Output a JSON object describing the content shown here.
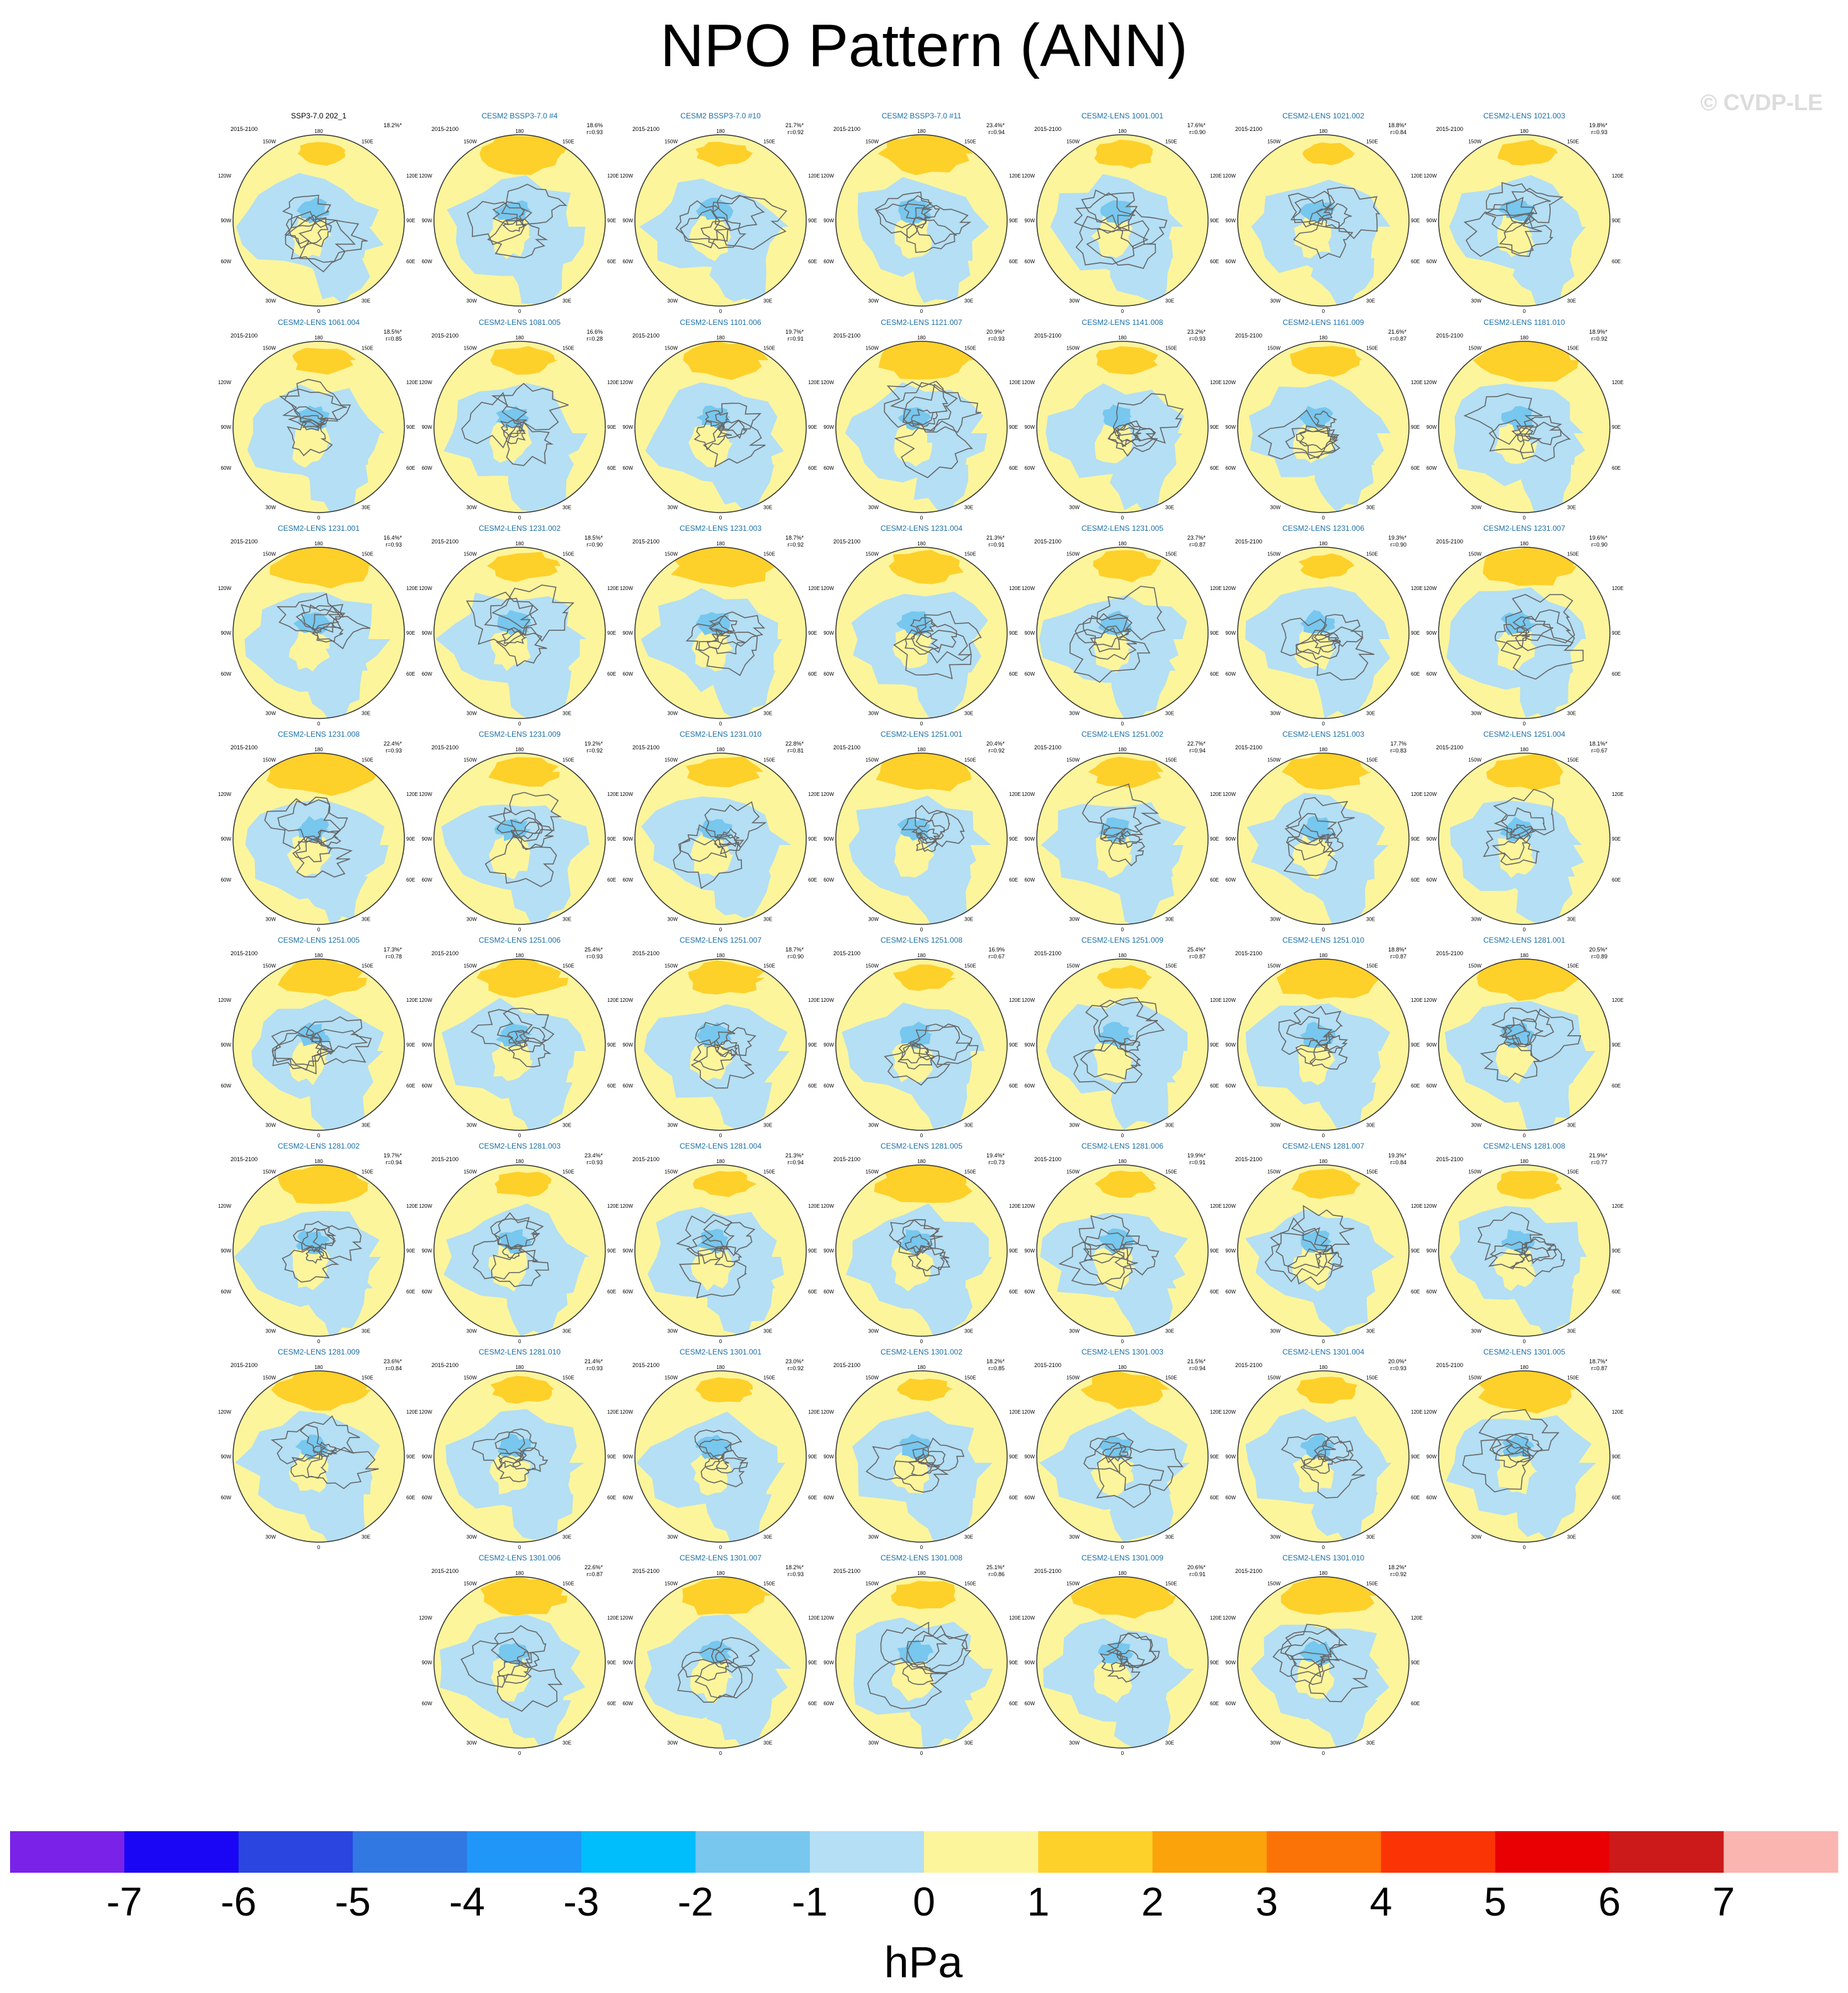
{
  "title": "NPO Pattern (ANN)",
  "watermark": "© CVDP-LE",
  "chart_data": {
    "type": "map-panels",
    "period": "2015-2100",
    "panels": [
      {
        "label": "SSP3-7.0 202_1",
        "pct": "18.2%*",
        "r": ""
      },
      {
        "label": "CESM2 BSSP3-7.0 #4",
        "pct": "18.6%",
        "r": "r=0.93"
      },
      {
        "label": "CESM2 BSSP3-7.0 #10",
        "pct": "21.7%*",
        "r": "r=0.92"
      },
      {
        "label": "CESM2 BSSP3-7.0 #11",
        "pct": "23.4%*",
        "r": "r=0.94"
      },
      {
        "label": "CESM2-LENS 1001.001",
        "pct": "17.6%*",
        "r": "r=0.90"
      },
      {
        "label": "CESM2-LENS 1021.002",
        "pct": "18.8%*",
        "r": "r=0.84"
      },
      {
        "label": "CESM2-LENS 1021.003",
        "pct": "19.8%*",
        "r": "r=0.93"
      },
      {
        "label": "CESM2-LENS 1061.004",
        "pct": "18.5%*",
        "r": "r=0.85"
      },
      {
        "label": "CESM2-LENS 1081.005",
        "pct": "16.6%",
        "r": "r=0.28"
      },
      {
        "label": "CESM2-LENS 1101.006",
        "pct": "19.7%*",
        "r": "r=0.91"
      },
      {
        "label": "CESM2-LENS 1121.007",
        "pct": "20.9%*",
        "r": "r=0.93"
      },
      {
        "label": "CESM2-LENS 1141.008",
        "pct": "23.2%*",
        "r": "r=0.93"
      },
      {
        "label": "CESM2-LENS 1161.009",
        "pct": "21.6%*",
        "r": "r=0.87"
      },
      {
        "label": "CESM2-LENS 1181.010",
        "pct": "18.9%*",
        "r": "r=0.92"
      },
      {
        "label": "CESM2-LENS 1231.001",
        "pct": "16.4%*",
        "r": "r=0.93"
      },
      {
        "label": "CESM2-LENS 1231.002",
        "pct": "18.5%*",
        "r": "r=0.90"
      },
      {
        "label": "CESM2-LENS 1231.003",
        "pct": "18.7%*",
        "r": "r=0.92"
      },
      {
        "label": "CESM2-LENS 1231.004",
        "pct": "21.3%*",
        "r": "r=0.91"
      },
      {
        "label": "CESM2-LENS 1231.005",
        "pct": "23.7%*",
        "r": "r=0.87"
      },
      {
        "label": "CESM2-LENS 1231.006",
        "pct": "19.3%*",
        "r": "r=0.90"
      },
      {
        "label": "CESM2-LENS 1231.007",
        "pct": "19.6%*",
        "r": "r=0.90"
      },
      {
        "label": "CESM2-LENS 1231.008",
        "pct": "22.4%*",
        "r": "r=0.93"
      },
      {
        "label": "CESM2-LENS 1231.009",
        "pct": "19.2%*",
        "r": "r=0.92"
      },
      {
        "label": "CESM2-LENS 1231.010",
        "pct": "22.8%*",
        "r": "r=0.81"
      },
      {
        "label": "CESM2-LENS 1251.001",
        "pct": "20.4%*",
        "r": "r=0.92"
      },
      {
        "label": "CESM2-LENS 1251.002",
        "pct": "22.7%*",
        "r": "r=0.94"
      },
      {
        "label": "CESM2-LENS 1251.003",
        "pct": "17.7%",
        "r": "r=0.83"
      },
      {
        "label": "CESM2-LENS 1251.004",
        "pct": "18.1%*",
        "r": "r=0.67"
      },
      {
        "label": "CESM2-LENS 1251.005",
        "pct": "17.3%*",
        "r": "r=0.78"
      },
      {
        "label": "CESM2-LENS 1251.006",
        "pct": "25.4%*",
        "r": "r=0.93"
      },
      {
        "label": "CESM2-LENS 1251.007",
        "pct": "18.7%*",
        "r": "r=0.90"
      },
      {
        "label": "CESM2-LENS 1251.008",
        "pct": "16.9%",
        "r": "r=0.67"
      },
      {
        "label": "CESM2-LENS 1251.009",
        "pct": "25.4%*",
        "r": "r=0.87"
      },
      {
        "label": "CESM2-LENS 1251.010",
        "pct": "18.8%*",
        "r": "r=0.87"
      },
      {
        "label": "CESM2-LENS 1281.001",
        "pct": "20.5%*",
        "r": "r=0.89"
      },
      {
        "label": "CESM2-LENS 1281.002",
        "pct": "19.7%*",
        "r": "r=0.94"
      },
      {
        "label": "CESM2-LENS 1281.003",
        "pct": "23.4%*",
        "r": "r=0.93"
      },
      {
        "label": "CESM2-LENS 1281.004",
        "pct": "21.3%*",
        "r": "r=0.94"
      },
      {
        "label": "CESM2-LENS 1281.005",
        "pct": "19.4%*",
        "r": "r=0.73"
      },
      {
        "label": "CESM2-LENS 1281.006",
        "pct": "19.9%*",
        "r": "r=0.91"
      },
      {
        "label": "CESM2-LENS 1281.007",
        "pct": "19.3%*",
        "r": "r=0.84"
      },
      {
        "label": "CESM2-LENS 1281.008",
        "pct": "21.9%*",
        "r": "r=0.77"
      },
      {
        "label": "CESM2-LENS 1281.009",
        "pct": "23.6%*",
        "r": "r=0.84"
      },
      {
        "label": "CESM2-LENS 1281.010",
        "pct": "21.4%*",
        "r": "r=0.93"
      },
      {
        "label": "CESM2-LENS 1301.001",
        "pct": "23.0%*",
        "r": "r=0.92"
      },
      {
        "label": "CESM2-LENS 1301.002",
        "pct": "18.2%*",
        "r": "r=0.85"
      },
      {
        "label": "CESM2-LENS 1301.003",
        "pct": "21.5%*",
        "r": "r=0.94"
      },
      {
        "label": "CESM2-LENS 1301.004",
        "pct": "20.0%*",
        "r": "r=0.93"
      },
      {
        "label": "CESM2-LENS 1301.005",
        "pct": "18.7%*",
        "r": "r=0.87"
      },
      {
        "label": "CESM2-LENS 1301.006",
        "pct": "22.6%*",
        "r": "r=0.87"
      },
      {
        "label": "CESM2-LENS 1301.007",
        "pct": "18.2%*",
        "r": "r=0.93"
      },
      {
        "label": "CESM2-LENS 1301.008",
        "pct": "25.1%*",
        "r": "r=0.86"
      },
      {
        "label": "CESM2-LENS 1301.009",
        "pct": "20.6%*",
        "r": "r=0.91"
      },
      {
        "label": "CESM2-LENS 1301.010",
        "pct": "18.2%*",
        "r": "r=0.92"
      }
    ],
    "map_labels": {
      "top": "180",
      "bottom": "0",
      "left_upper": "150W",
      "right_upper": "150E",
      "left_mid_upper": "120W",
      "right_mid_upper": "120E",
      "left_mid": "90W",
      "right_mid": "90E",
      "left_mid_lower": "60W",
      "right_mid_lower": "60E",
      "left_lower": "30W",
      "right_lower": "30E"
    },
    "colorbar": {
      "unit": "hPa",
      "ticks": [
        "-7",
        "-6",
        "-5",
        "-4",
        "-3",
        "-2",
        "-1",
        "0",
        "1",
        "2",
        "3",
        "4",
        "5",
        "6",
        "7"
      ],
      "colors": [
        "#7b22e8",
        "#1a06f5",
        "#2a45e0",
        "#3278e2",
        "#2196f9",
        "#00bdfb",
        "#77c7ef",
        "#b4dff4",
        "#fcf59c",
        "#fed02a",
        "#fba30a",
        "#fb7306",
        "#fb3405",
        "#e80003",
        "#cc1a1a",
        "#fbb5b1"
      ]
    }
  }
}
